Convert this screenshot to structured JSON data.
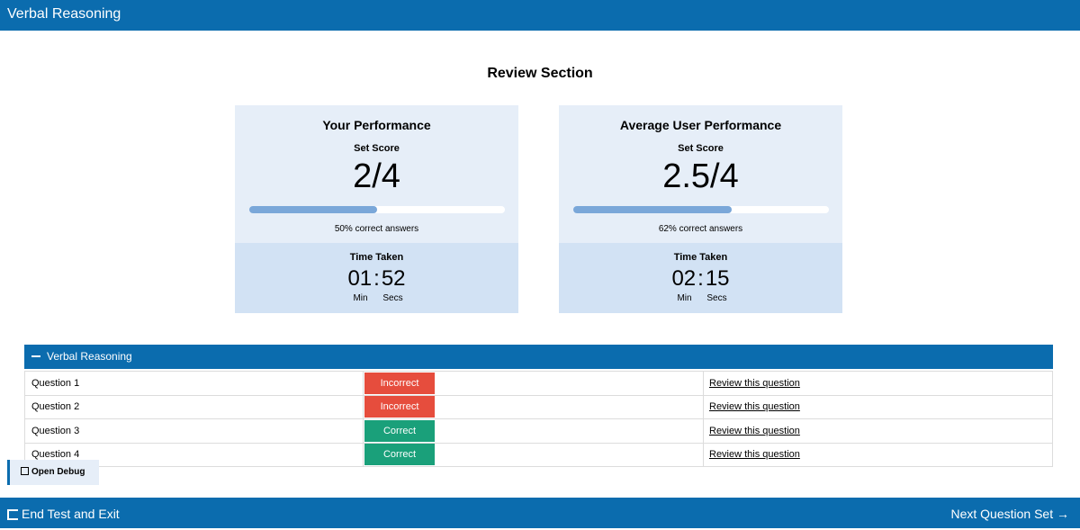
{
  "header": {
    "title": "Verbal Reasoning"
  },
  "review": {
    "title": "Review Section"
  },
  "cards": [
    {
      "title": "Your Performance",
      "set_score_label": "Set Score",
      "score": "2/4",
      "progress": 0.5,
      "pct_text": "50% correct answers",
      "time_label": "Time Taken",
      "minutes": "01",
      "seconds": "52",
      "min_label": "Min",
      "sec_label": "Secs"
    },
    {
      "title": "Average User Performance",
      "set_score_label": "Set Score",
      "score": "2.5/4",
      "progress": 0.62,
      "pct_text": "62% correct answers",
      "time_label": "Time Taken",
      "minutes": "02",
      "seconds": "15",
      "min_label": "Min",
      "sec_label": "Secs"
    }
  ],
  "section": {
    "title": "Verbal Reasoning",
    "rows": [
      {
        "question": "Question 1",
        "status": "Incorrect",
        "link": "Review this question"
      },
      {
        "question": "Question 2",
        "status": "Incorrect",
        "link": "Review this question"
      },
      {
        "question": "Question 3",
        "status": "Correct",
        "link": "Review this question"
      },
      {
        "question": "Question 4",
        "status": "Correct",
        "link": "Review this question"
      }
    ]
  },
  "debug": {
    "label": "Open Debug"
  },
  "footer": {
    "end_label": "End Test and Exit",
    "next_label": "Next Question Set"
  },
  "colors": {
    "brand": "#0b6cae",
    "incorrect": "#e64d3d",
    "correct": "#1aa07a",
    "progress": "#7aa7d9"
  },
  "icons": {
    "debug": "external-window-icon",
    "exit": "exit-door-icon",
    "next": "arrow-right-icon",
    "collapse": "minus-icon"
  }
}
